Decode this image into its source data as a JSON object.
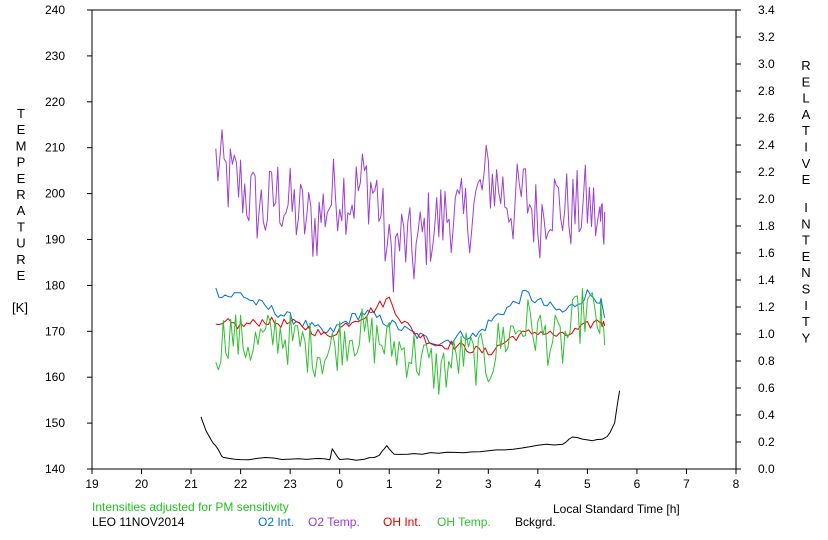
{
  "colors": {
    "o2_int": "#0070d0",
    "o2_temp": "#9b40d0",
    "oh_int": "#e00000",
    "oh_temp": "#30c030",
    "background": "#000000",
    "note": "#20c020"
  },
  "chart_data": {
    "type": "line",
    "ylabel_left_letters": [
      "T",
      "E",
      "M",
      "P",
      "E",
      "R",
      "A",
      "T",
      "U",
      "R",
      "E"
    ],
    "ylabel_left_unit": "[K]",
    "ylabel_right_line1": [
      "R",
      "E",
      "L",
      "A",
      "T",
      "I",
      "V",
      "E"
    ],
    "ylabel_right_line2": [
      "I",
      "N",
      "T",
      "E",
      "N",
      "S",
      "I",
      "T",
      "Y"
    ],
    "xlabel": "Local Standard Time [h]",
    "note": "Intensities adjusted for PM sensitivity",
    "station": "LEO 11NOV2014",
    "legend": [
      "O2 Int.",
      "O2 Temp.",
      "OH Int.",
      "OH Temp.",
      "Bckgrd."
    ],
    "x_ticks": [
      "19",
      "20",
      "21",
      "22",
      "23",
      "0",
      "1",
      "2",
      "3",
      "4",
      "5",
      "6",
      "7",
      "8"
    ],
    "y_left_ticks": [
      "140",
      "150",
      "160",
      "170",
      "180",
      "190",
      "200",
      "210",
      "220",
      "230",
      "240"
    ],
    "y_right_ticks": [
      "0.0",
      "0.2",
      "0.4",
      "0.6",
      "0.8",
      "1.0",
      "1.2",
      "1.4",
      "1.6",
      "1.8",
      "2.0",
      "2.2",
      "2.4",
      "2.6",
      "2.8",
      "3.0",
      "3.2",
      "3.4"
    ],
    "xlim": [
      19,
      32
    ],
    "ylim_left": [
      140,
      240
    ],
    "ylim_right": [
      0,
      3.4
    ],
    "grid": false,
    "series": [
      {
        "name": "O2 Temp.",
        "axis": "left",
        "x": [
          21.5,
          21.75,
          22.0,
          22.25,
          22.5,
          22.75,
          23.0,
          23.25,
          23.5,
          23.75,
          24.0,
          24.25,
          24.5,
          24.75,
          25.0,
          25.25,
          25.5,
          25.75,
          26.0,
          26.25,
          26.5,
          26.75,
          27.0,
          27.25,
          27.5,
          27.75,
          28.0,
          28.25,
          28.5,
          28.75,
          29.0,
          29.25,
          29.35
        ],
        "y": [
          207,
          203,
          202,
          198,
          196,
          200,
          197,
          195,
          193,
          198,
          201,
          199,
          203,
          200,
          186,
          190,
          187,
          192,
          194,
          196,
          194,
          198,
          204,
          201,
          197,
          200,
          194,
          199,
          197,
          196,
          198,
          193,
          196
        ]
      },
      {
        "name": "O2 Int.",
        "axis": "right",
        "x": [
          21.5,
          21.75,
          22.0,
          22.25,
          22.5,
          22.75,
          23.0,
          23.25,
          23.5,
          23.75,
          24.0,
          24.25,
          24.5,
          24.75,
          25.0,
          25.25,
          25.5,
          25.75,
          26.0,
          26.25,
          26.5,
          26.75,
          27.0,
          27.25,
          27.5,
          27.75,
          28.0,
          28.25,
          28.5,
          28.75,
          29.0,
          29.25,
          29.35
        ],
        "y": [
          1.32,
          1.28,
          1.3,
          1.24,
          1.2,
          1.16,
          1.12,
          1.08,
          1.04,
          1.0,
          1.06,
          1.12,
          1.16,
          1.12,
          1.08,
          1.04,
          1.0,
          0.96,
          0.94,
          0.96,
          1.0,
          0.98,
          1.08,
          1.16,
          1.22,
          1.3,
          1.24,
          1.2,
          1.16,
          1.22,
          1.3,
          1.26,
          1.12
        ]
      },
      {
        "name": "OH Int.",
        "axis": "right",
        "x": [
          21.5,
          21.75,
          22.0,
          22.25,
          22.5,
          22.75,
          23.0,
          23.25,
          23.5,
          23.75,
          24.0,
          24.25,
          24.5,
          24.75,
          25.0,
          25.25,
          25.5,
          25.75,
          26.0,
          26.25,
          26.5,
          26.75,
          27.0,
          27.25,
          27.5,
          27.75,
          28.0,
          28.25,
          28.5,
          28.75,
          29.0,
          29.25,
          29.35
        ],
        "y": [
          1.04,
          1.08,
          1.06,
          1.08,
          1.1,
          1.08,
          1.08,
          1.06,
          1.02,
          0.98,
          1.04,
          1.1,
          1.14,
          1.2,
          1.26,
          1.1,
          1.02,
          0.96,
          0.92,
          0.92,
          0.9,
          0.88,
          0.86,
          0.92,
          0.98,
          1.0,
          1.02,
          1.0,
          0.98,
          1.02,
          1.06,
          1.1,
          1.06
        ]
      },
      {
        "name": "OH Temp.",
        "axis": "left",
        "x": [
          21.5,
          21.75,
          22.0,
          22.25,
          22.5,
          22.75,
          23.0,
          23.25,
          23.5,
          23.75,
          24.0,
          24.25,
          24.5,
          24.75,
          25.0,
          25.25,
          25.5,
          25.75,
          26.0,
          26.25,
          26.5,
          26.75,
          27.0,
          27.25,
          27.5,
          27.75,
          28.0,
          28.25,
          28.5,
          28.75,
          29.0,
          29.25,
          29.35
        ],
        "y": [
          166,
          170,
          168,
          167,
          168,
          170,
          168,
          167,
          166,
          165,
          168,
          170,
          169,
          168,
          167,
          166,
          165,
          163,
          161,
          163,
          165,
          164,
          163,
          168,
          170,
          172,
          170,
          168,
          167,
          172,
          175,
          172,
          167
        ]
      },
      {
        "name": "Bckgrd.",
        "axis": "right",
        "x": [
          21.2,
          21.3,
          21.45,
          21.55,
          21.65,
          22.0,
          22.5,
          23.0,
          23.5,
          23.8,
          23.85,
          24.0,
          24.5,
          24.8,
          24.95,
          25.1,
          25.5,
          26.0,
          26.5,
          27.0,
          27.5,
          28.0,
          28.5,
          28.7,
          29.0,
          29.3,
          29.45,
          29.55,
          29.65
        ],
        "y": [
          0.39,
          0.28,
          0.19,
          0.14,
          0.08,
          0.07,
          0.08,
          0.07,
          0.08,
          0.07,
          0.15,
          0.07,
          0.07,
          0.1,
          0.17,
          0.11,
          0.11,
          0.12,
          0.12,
          0.13,
          0.15,
          0.18,
          0.18,
          0.24,
          0.21,
          0.22,
          0.26,
          0.34,
          0.58
        ]
      }
    ]
  }
}
